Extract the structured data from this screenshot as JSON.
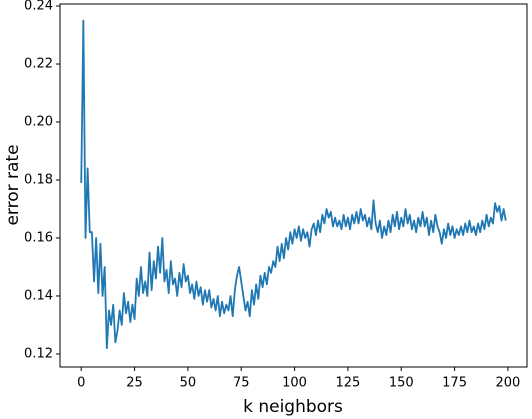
{
  "chart_data": {
    "type": "line",
    "xlabel": "k neighbors",
    "ylabel": "error rate",
    "x": [
      0,
      1,
      2,
      3,
      4,
      5,
      6,
      7,
      8,
      9,
      10,
      11,
      12,
      13,
      14,
      15,
      16,
      17,
      18,
      19,
      20,
      21,
      22,
      23,
      24,
      25,
      26,
      27,
      28,
      29,
      30,
      31,
      32,
      33,
      34,
      35,
      36,
      37,
      38,
      39,
      40,
      41,
      42,
      43,
      44,
      45,
      46,
      47,
      48,
      49,
      50,
      51,
      52,
      53,
      54,
      55,
      56,
      57,
      58,
      59,
      60,
      61,
      62,
      63,
      64,
      65,
      66,
      67,
      68,
      69,
      70,
      71,
      72,
      73,
      74,
      75,
      76,
      77,
      78,
      79,
      80,
      81,
      82,
      83,
      84,
      85,
      86,
      87,
      88,
      89,
      90,
      91,
      92,
      93,
      94,
      95,
      96,
      97,
      98,
      99,
      100,
      101,
      102,
      103,
      104,
      105,
      106,
      107,
      108,
      109,
      110,
      111,
      112,
      113,
      114,
      115,
      116,
      117,
      118,
      119,
      120,
      121,
      122,
      123,
      124,
      125,
      126,
      127,
      128,
      129,
      130,
      131,
      132,
      133,
      134,
      135,
      136,
      137,
      138,
      139,
      140,
      141,
      142,
      143,
      144,
      145,
      146,
      147,
      148,
      149,
      150,
      151,
      152,
      153,
      154,
      155,
      156,
      157,
      158,
      159,
      160,
      161,
      162,
      163,
      164,
      165,
      166,
      167,
      168,
      169,
      170,
      171,
      172,
      173,
      174,
      175,
      176,
      177,
      178,
      179,
      180,
      181,
      182,
      183,
      184,
      185,
      186,
      187,
      188,
      189,
      190,
      191,
      192,
      193,
      194,
      195,
      196,
      197,
      198,
      199
    ],
    "series": [
      {
        "color": "#1f77b4",
        "values": [
          0.179,
          0.235,
          0.16,
          0.184,
          0.162,
          0.162,
          0.145,
          0.16,
          0.141,
          0.158,
          0.14,
          0.15,
          0.122,
          0.135,
          0.13,
          0.137,
          0.124,
          0.128,
          0.135,
          0.13,
          0.141,
          0.134,
          0.138,
          0.131,
          0.137,
          0.132,
          0.146,
          0.14,
          0.15,
          0.141,
          0.145,
          0.14,
          0.155,
          0.142,
          0.152,
          0.146,
          0.157,
          0.148,
          0.16,
          0.145,
          0.149,
          0.141,
          0.152,
          0.144,
          0.146,
          0.14,
          0.148,
          0.143,
          0.151,
          0.145,
          0.147,
          0.141,
          0.144,
          0.139,
          0.145,
          0.14,
          0.143,
          0.137,
          0.142,
          0.138,
          0.142,
          0.136,
          0.139,
          0.135,
          0.14,
          0.133,
          0.138,
          0.134,
          0.137,
          0.135,
          0.14,
          0.133,
          0.142,
          0.147,
          0.15,
          0.145,
          0.14,
          0.135,
          0.138,
          0.133,
          0.142,
          0.137,
          0.144,
          0.139,
          0.147,
          0.143,
          0.148,
          0.144,
          0.15,
          0.148,
          0.152,
          0.15,
          0.157,
          0.152,
          0.158,
          0.153,
          0.16,
          0.156,
          0.162,
          0.158,
          0.163,
          0.16,
          0.164,
          0.159,
          0.163,
          0.16,
          0.162,
          0.157,
          0.163,
          0.165,
          0.161,
          0.166,
          0.162,
          0.168,
          0.165,
          0.17,
          0.167,
          0.169,
          0.164,
          0.167,
          0.164,
          0.166,
          0.163,
          0.168,
          0.164,
          0.167,
          0.163,
          0.168,
          0.165,
          0.169,
          0.165,
          0.17,
          0.166,
          0.168,
          0.164,
          0.167,
          0.163,
          0.173,
          0.165,
          0.162,
          0.166,
          0.16,
          0.164,
          0.161,
          0.166,
          0.162,
          0.168,
          0.164,
          0.169,
          0.163,
          0.167,
          0.164,
          0.17,
          0.165,
          0.168,
          0.163,
          0.166,
          0.162,
          0.167,
          0.164,
          0.169,
          0.164,
          0.167,
          0.161,
          0.166,
          0.162,
          0.168,
          0.164,
          0.162,
          0.158,
          0.163,
          0.16,
          0.165,
          0.161,
          0.164,
          0.16,
          0.163,
          0.161,
          0.164,
          0.161,
          0.165,
          0.162,
          0.166,
          0.162,
          0.164,
          0.161,
          0.165,
          0.162,
          0.166,
          0.163,
          0.168,
          0.164,
          0.167,
          0.165,
          0.172,
          0.169,
          0.171,
          0.166,
          0.17,
          0.166
        ]
      }
    ],
    "xlim": [
      -9.95,
      208.95
    ],
    "xticks": [
      0,
      25,
      50,
      75,
      100,
      125,
      150,
      175,
      200
    ],
    "ylim": [
      0.1155,
      0.2407
    ],
    "yticks": [
      0.12,
      0.14,
      0.16,
      0.18,
      {
        "value": 0.2,
        "label": "0.20"
      },
      0.22,
      0.24
    ],
    "grid": false
  }
}
